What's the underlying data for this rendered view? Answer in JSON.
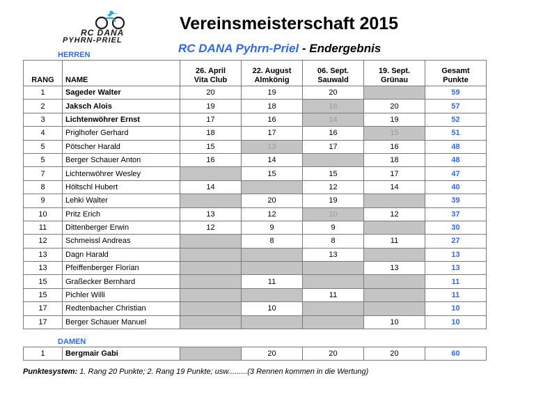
{
  "logo": {
    "brand_line1": "RC DANA",
    "brand_line2": "PYHRN-PRIEL",
    "accent": "#2aa6c9"
  },
  "title": "Vereinsmeisterschaft 2015",
  "subtitle": {
    "club": "RC DANA Pyhrn-Priel",
    "suffix": "- Endergebnis"
  },
  "colors": {
    "accent": "#2f6be3",
    "shaded": "#c4c4c4",
    "struck_text": "#9a9a9a"
  },
  "herren": {
    "label": "HERREN",
    "headers": {
      "rang": "RANG",
      "name": "NAME",
      "e1_line1": "26. April",
      "e1_line2": "Vita Club",
      "e2_line1": "22. August",
      "e2_line2": "Almkönig",
      "e3_line1": "06. Sept.",
      "e3_line2": "Sauwald",
      "e4_line1": "19. Sept.",
      "e4_line2": "Grünau",
      "total_line1": "Gesamt",
      "total_line2": "Punkte"
    },
    "rows": [
      {
        "rang": "1",
        "name": "Sageder Walter",
        "name_bold": true,
        "cells": [
          {
            "v": "20"
          },
          {
            "v": "19"
          },
          {
            "v": "20"
          },
          {
            "v": "",
            "blank": true
          }
        ],
        "total": "59"
      },
      {
        "rang": "2",
        "name": "Jaksch Alois",
        "name_bold": true,
        "cells": [
          {
            "v": "19"
          },
          {
            "v": "18"
          },
          {
            "v": "18",
            "struck": true
          },
          {
            "v": "20"
          }
        ],
        "total": "57"
      },
      {
        "rang": "3",
        "name": "Lichtenwöhrer Ernst",
        "name_bold": true,
        "cells": [
          {
            "v": "17"
          },
          {
            "v": "16"
          },
          {
            "v": "14",
            "struck": true
          },
          {
            "v": "19"
          }
        ],
        "total": "52"
      },
      {
        "rang": "4",
        "name": "Priglhofer Gerhard",
        "cells": [
          {
            "v": "18"
          },
          {
            "v": "17"
          },
          {
            "v": "16"
          },
          {
            "v": "15",
            "struck": true
          }
        ],
        "total": "51"
      },
      {
        "rang": "5",
        "name": "Pötscher Harald",
        "cells": [
          {
            "v": "15"
          },
          {
            "v": "13",
            "struck": true
          },
          {
            "v": "17"
          },
          {
            "v": "16"
          }
        ],
        "total": "48"
      },
      {
        "rang": "5",
        "name": "Berger Schauer Anton",
        "cells": [
          {
            "v": "16"
          },
          {
            "v": "14"
          },
          {
            "v": "",
            "blank": true
          },
          {
            "v": "18"
          }
        ],
        "total": "48"
      },
      {
        "rang": "7",
        "name": "Lichtenwöhrer Wesley",
        "cells": [
          {
            "v": "",
            "blank": true
          },
          {
            "v": "15"
          },
          {
            "v": "15"
          },
          {
            "v": "17"
          }
        ],
        "total": "47"
      },
      {
        "rang": "8",
        "name": "Höltschl Hubert",
        "cells": [
          {
            "v": "14"
          },
          {
            "v": "",
            "blank": true
          },
          {
            "v": "12"
          },
          {
            "v": "14"
          }
        ],
        "total": "40"
      },
      {
        "rang": "9",
        "name": "Lehki Walter",
        "cells": [
          {
            "v": "",
            "blank": true
          },
          {
            "v": "20"
          },
          {
            "v": "19"
          },
          {
            "v": "",
            "blank": true
          }
        ],
        "total": "39"
      },
      {
        "rang": "10",
        "name": "Pritz Erich",
        "cells": [
          {
            "v": "13"
          },
          {
            "v": "12"
          },
          {
            "v": "10",
            "struck": true
          },
          {
            "v": "12"
          }
        ],
        "total": "37"
      },
      {
        "rang": "11",
        "name": "Dittenberger Erwin",
        "cells": [
          {
            "v": "12"
          },
          {
            "v": "9"
          },
          {
            "v": "9"
          },
          {
            "v": "",
            "blank": true
          }
        ],
        "total": "30"
      },
      {
        "rang": "12",
        "name": "Schmeissl Andreas",
        "cells": [
          {
            "v": "",
            "blank": true
          },
          {
            "v": "8"
          },
          {
            "v": "8"
          },
          {
            "v": "11"
          }
        ],
        "total": "27"
      },
      {
        "rang": "13",
        "name": "Dagn Harald",
        "cells": [
          {
            "v": "",
            "blank": true
          },
          {
            "v": "",
            "blank": true
          },
          {
            "v": "13"
          },
          {
            "v": "",
            "blank": true
          }
        ],
        "total": "13"
      },
      {
        "rang": "13",
        "name": "Pfeiffenberger Florian",
        "cells": [
          {
            "v": "",
            "blank": true
          },
          {
            "v": "",
            "blank": true
          },
          {
            "v": "",
            "blank": true
          },
          {
            "v": "13"
          }
        ],
        "total": "13"
      },
      {
        "rang": "15",
        "name": "Graßecker Bernhard",
        "cells": [
          {
            "v": "",
            "blank": true
          },
          {
            "v": "11"
          },
          {
            "v": "",
            "blank": true
          },
          {
            "v": "",
            "blank": true
          }
        ],
        "total": "11"
      },
      {
        "rang": "15",
        "name": "Pichler Willi",
        "cells": [
          {
            "v": "",
            "blank": true
          },
          {
            "v": "",
            "blank": true
          },
          {
            "v": "11"
          },
          {
            "v": "",
            "blank": true
          }
        ],
        "total": "11"
      },
      {
        "rang": "17",
        "name": "Redtenbacher Christian",
        "cells": [
          {
            "v": "",
            "blank": true
          },
          {
            "v": "10"
          },
          {
            "v": "",
            "blank": true
          },
          {
            "v": "",
            "blank": true
          }
        ],
        "total": "10"
      },
      {
        "rang": "17",
        "name": "Berger Schauer Manuel",
        "cells": [
          {
            "v": "",
            "blank": true
          },
          {
            "v": "",
            "blank": true
          },
          {
            "v": "",
            "blank": true
          },
          {
            "v": "10"
          }
        ],
        "total": "10"
      }
    ]
  },
  "damen": {
    "label": "DAMEN",
    "rows": [
      {
        "rang": "1",
        "name": "Bergmair Gabi",
        "name_bold": true,
        "cells": [
          {
            "v": "",
            "blank": true
          },
          {
            "v": "20"
          },
          {
            "v": "20"
          },
          {
            "v": "20"
          }
        ],
        "total": "60"
      }
    ]
  },
  "footer": {
    "label": "Punktesystem:",
    "text": " 1. Rang 20 Punkte; 2. Rang 19 Punkte; usw.........(3 Rennen kommen in die Wertung)"
  }
}
